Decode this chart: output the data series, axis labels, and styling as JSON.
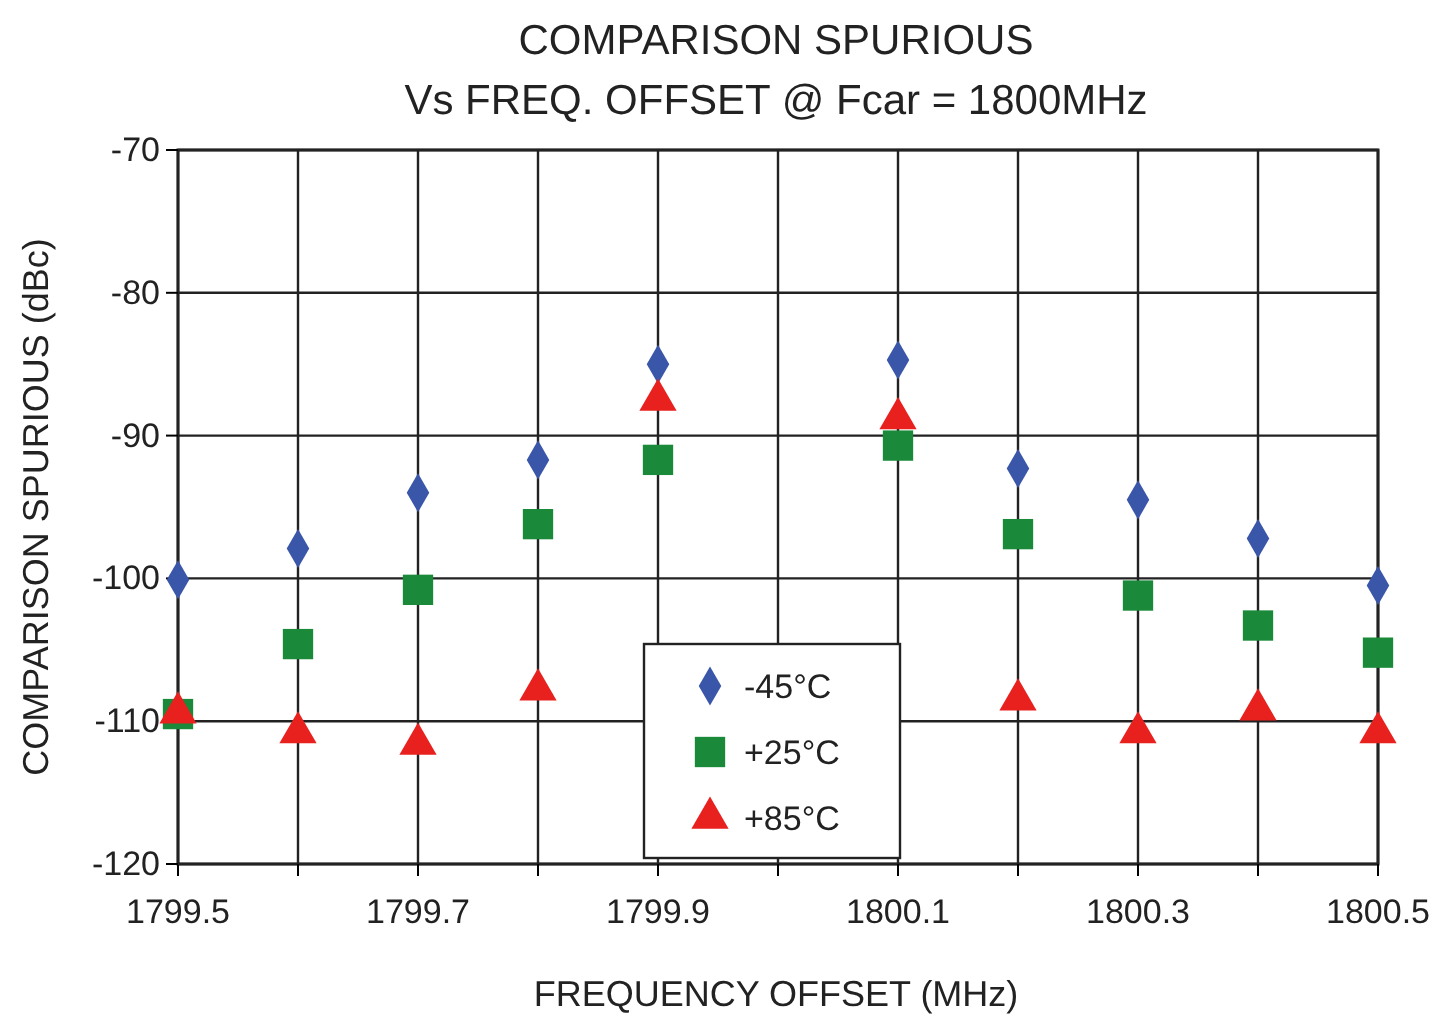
{
  "chart_data": {
    "type": "scatter",
    "title": "COMPARISON SPURIOUS",
    "subtitle": "Vs FREQ. OFFSET @ Fcar = 1800MHz",
    "xlabel": "FREQUENCY OFFSET (MHz)",
    "ylabel": "COMPARISON SPURIOUS (dBc)",
    "x": [
      1799.5,
      1799.6,
      1799.7,
      1799.8,
      1799.9,
      1800.1,
      1800.2,
      1800.3,
      1800.4,
      1800.5
    ],
    "series": [
      {
        "name": "-45°C",
        "color": "#3a56a8",
        "marker": "diamond",
        "values": [
          -100.1,
          -97.9,
          -94.0,
          -91.7,
          -85.0,
          -84.7,
          -92.3,
          -94.5,
          -97.2,
          -100.5
        ]
      },
      {
        "name": "+25°C",
        "color": "#1a8a3a",
        "marker": "square",
        "values": [
          -109.5,
          -104.6,
          -100.8,
          -96.2,
          -91.7,
          -90.7,
          -96.9,
          -101.2,
          -103.3,
          -105.2
        ]
      },
      {
        "name": "+85°C",
        "color": "#e8201e",
        "marker": "triangle",
        "values": [
          -109.4,
          -110.8,
          -111.6,
          -107.8,
          -87.5,
          -88.8,
          -108.5,
          -110.8,
          -109.2,
          -110.8
        ]
      }
    ],
    "xlim": [
      1799.5,
      1800.5
    ],
    "xticks": [
      1799.5,
      {
        "value": 1799.6,
        "label": null
      },
      1799.7,
      {
        "value": 1799.8,
        "label": null
      },
      1799.9,
      {
        "value": 1800.0,
        "label": null
      },
      1800.1,
      {
        "value": 1800.2,
        "label": null
      },
      1800.3,
      {
        "value": 1800.4,
        "label": null
      },
      1800.5
    ],
    "ylim": [
      -120,
      -70
    ],
    "yticks": [
      -120,
      -110,
      -100,
      -90,
      -80,
      -70
    ],
    "grid": true,
    "legend": "bottom"
  }
}
